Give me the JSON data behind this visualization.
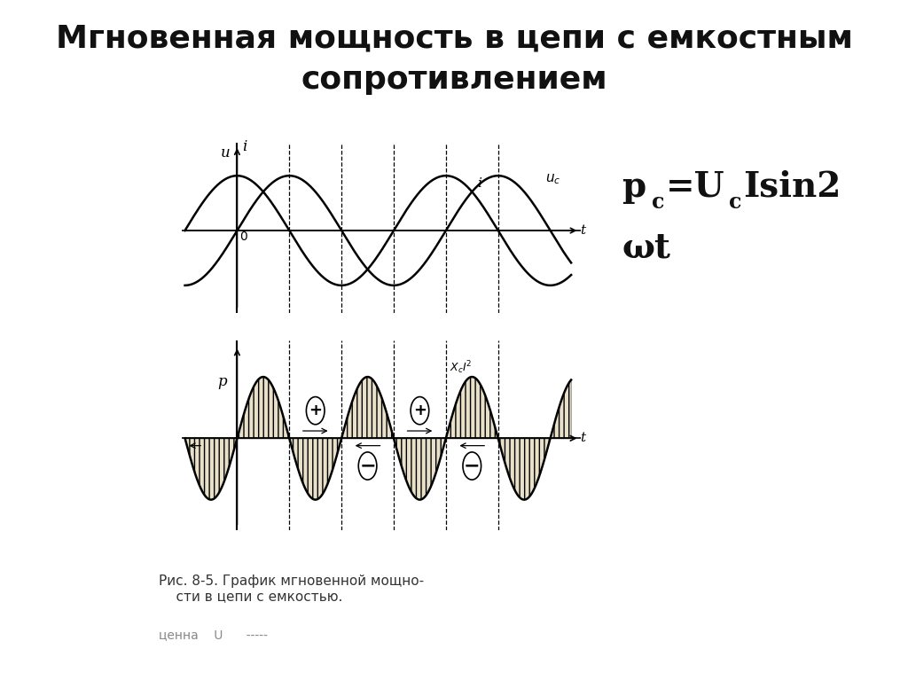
{
  "title_line1": "Мгновенная мощность в цепи с емкостным",
  "title_line2": "сопротивлением",
  "bg_color": "#ffffff",
  "plot_bg_color": "#f5f0e0",
  "title_fontsize": 26,
  "formula_fontsize": 28,
  "caption_fontsize": 11,
  "formula_text1": "p",
  "formula_sub1": "c",
  "formula_text2": "=U",
  "formula_sub2": "c",
  "formula_text3": "Isin2",
  "formula_text4": "ωt",
  "caption": "Рис. 8-5. График мгновенной мощно-\n    сти в цепи с емкостью.",
  "bottom_text": "ценна    U      -----"
}
